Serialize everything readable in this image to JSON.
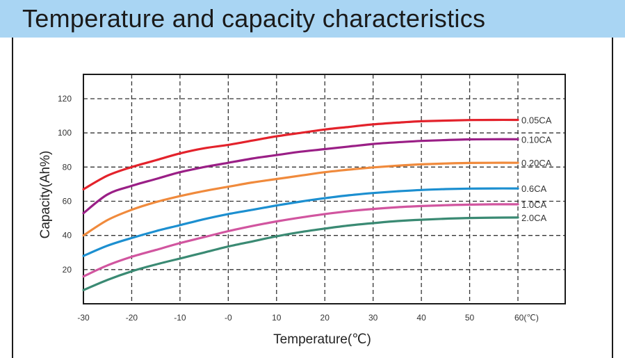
{
  "header": {
    "title": "Temperature and capacity characteristics"
  },
  "chart_data": {
    "type": "line",
    "title": "Temperature and capacity characteristics",
    "xlabel": "Temperature(℃)",
    "ylabel": "Capacity(Ah%)",
    "xlim": [
      -30,
      60
    ],
    "ylim": [
      0,
      120
    ],
    "x_ticks": [
      -30,
      -20,
      -10,
      0,
      10,
      20,
      30,
      40,
      50,
      60
    ],
    "x_tick_labels": [
      "-30",
      "-20",
      "-10",
      "-0",
      "10",
      "20",
      "30",
      "40",
      "50",
      "60(℃)"
    ],
    "y_ticks": [
      20,
      40,
      60,
      80,
      100,
      120
    ],
    "y_tick_labels": [
      "20",
      "40",
      "60",
      "80",
      "100",
      "120"
    ],
    "grid": true,
    "x": [
      -30,
      -25,
      -20,
      -15,
      -10,
      -5,
      0,
      5,
      10,
      15,
      20,
      25,
      30,
      35,
      40,
      45,
      50,
      55,
      60
    ],
    "series": [
      {
        "name": "0.05CA",
        "color": "#e3222b",
        "values": [
          67,
          75,
          80,
          84,
          88,
          91,
          93,
          95.5,
          98,
          100,
          102,
          103.5,
          105,
          106,
          106.8,
          107.2,
          107.5,
          107.6,
          107.6
        ]
      },
      {
        "name": "0.10CA",
        "color": "#9a1f86",
        "values": [
          53,
          64,
          69,
          73,
          77,
          80,
          82.5,
          85,
          87,
          89,
          90.5,
          92,
          93.5,
          94.5,
          95.3,
          95.8,
          96.2,
          96.3,
          96.3
        ]
      },
      {
        "name": "0.20CA",
        "color": "#f08a3c",
        "values": [
          40,
          49,
          55,
          59.5,
          63,
          66,
          68.5,
          71,
          73,
          75,
          77,
          78.5,
          79.8,
          80.8,
          81.6,
          82.1,
          82.4,
          82.5,
          82.5
        ]
      },
      {
        "name": "0.6CA",
        "color": "#1c8fd0",
        "values": [
          28,
          34,
          38.5,
          42.5,
          46,
          49.5,
          52.5,
          55,
          57.5,
          59.8,
          61.8,
          63.5,
          64.8,
          65.8,
          66.6,
          67.1,
          67.4,
          67.5,
          67.5
        ]
      },
      {
        "name": "1.0CA",
        "color": "#d1559f",
        "values": [
          16,
          22.5,
          27.5,
          31.5,
          35.5,
          39,
          42.5,
          45.5,
          48.2,
          50.5,
          52.5,
          54.2,
          55.5,
          56.5,
          57.2,
          57.7,
          58,
          58.2,
          58.2
        ]
      },
      {
        "name": "2.0CA",
        "color": "#3a8a73",
        "values": [
          8,
          14,
          19,
          23,
          26.5,
          30,
          33.5,
          36.5,
          39.5,
          42,
          44,
          45.8,
          47.2,
          48.4,
          49.2,
          49.8,
          50.2,
          50.4,
          50.5
        ]
      }
    ]
  }
}
